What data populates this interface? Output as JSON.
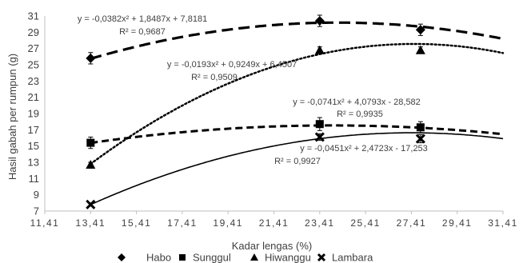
{
  "chart_data": {
    "type": "scatter",
    "xlabel": "Kadar lengas (%)",
    "ylabel": "Hasil gabah per rumpun (g)",
    "xlim": [
      11.41,
      31.41
    ],
    "ylim": [
      7,
      31
    ],
    "x_ticks": [
      "11,41",
      "13,41",
      "15,41",
      "17,41",
      "19,41",
      "21,41",
      "23,41",
      "25,41",
      "27,41",
      "29,41",
      "31,41"
    ],
    "y_ticks": [
      "7",
      "9",
      "11",
      "13",
      "15",
      "17",
      "19",
      "21",
      "23",
      "25",
      "27",
      "29",
      "31"
    ],
    "grid": false,
    "legend_position": "bottom",
    "series": [
      {
        "name": "Habo",
        "marker": "diamond",
        "line_style": "long-dash",
        "x": [
          13.41,
          23.41,
          27.81
        ],
        "y": [
          25.8,
          30.4,
          29.3
        ],
        "error": [
          0.7,
          0.7,
          0.7
        ],
        "fit": {
          "a": -0.0382,
          "b": 1.8487,
          "c": 7.8181
        },
        "equation": "y = -0,0382x² + 1,8487x + 7,8181",
        "r2": "R² = 0,9687"
      },
      {
        "name": "Sunggul",
        "marker": "square",
        "line_style": "dash",
        "x": [
          13.41,
          23.41,
          27.81
        ],
        "y": [
          15.4,
          17.7,
          17.3
        ],
        "error": [
          0.7,
          0.8,
          0.7
        ],
        "fit": {
          "a": -0.0193,
          "b": 0.9249,
          "c": 6.4507
        },
        "equation": "y = -0,0193x² + 0,9249x + 6,4507",
        "r2": "R² = 0,9509"
      },
      {
        "name": "Hiwanggu",
        "marker": "triangle",
        "line_style": "dotted",
        "x": [
          13.41,
          23.41,
          27.81
        ],
        "y": [
          12.7,
          26.8,
          26.8
        ],
        "error": [
          0.3,
          0.4,
          0.4
        ],
        "fit": {
          "a": -0.0741,
          "b": 4.0793,
          "c": -28.582
        },
        "equation": "y = -0,0741x² + 4,0793x - 28,582",
        "r2": "R² = 0,9935"
      },
      {
        "name": "Lambara",
        "marker": "x",
        "line_style": "solid",
        "x": [
          13.41,
          23.41,
          27.81
        ],
        "y": [
          7.8,
          16.1,
          15.9
        ],
        "error": [
          0.2,
          0.4,
          0.5
        ],
        "fit": {
          "a": -0.0451,
          "b": 2.4723,
          "c": -17.253
        },
        "equation": "y = -0,0451x² + 2,4723x - 17,253",
        "r2": "R² = 0,9927"
      }
    ]
  }
}
